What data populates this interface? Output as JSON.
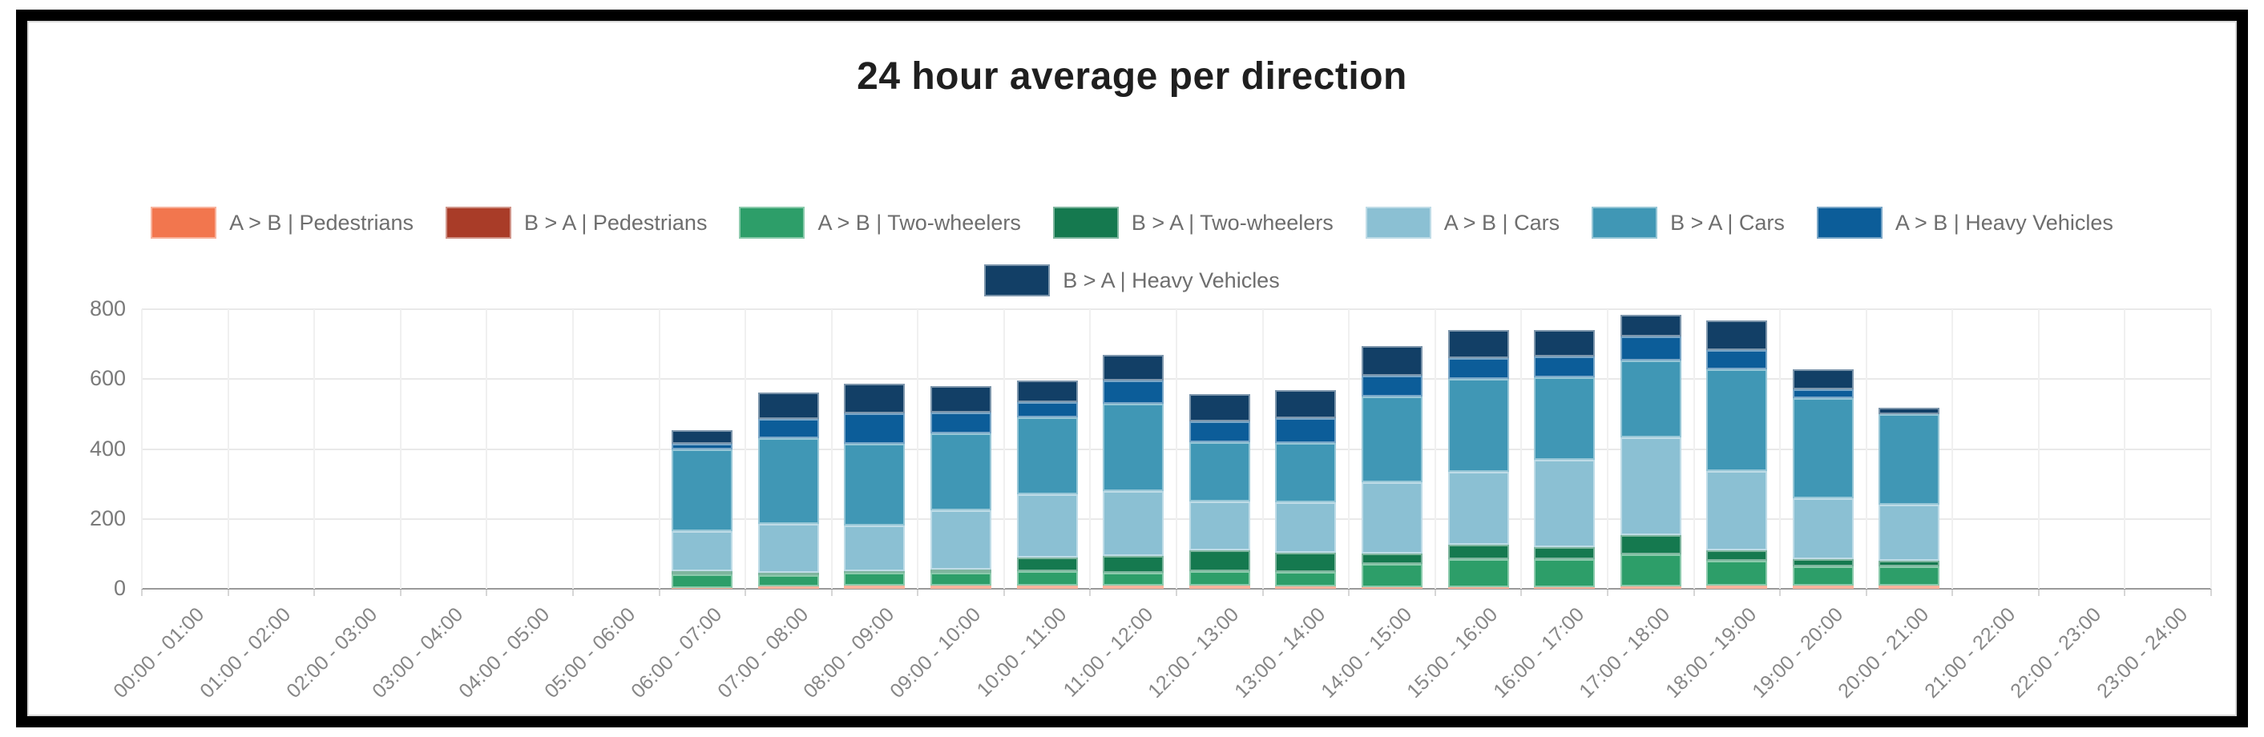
{
  "page": {
    "title": "24 hour average per direction"
  },
  "chart_data": {
    "type": "bar",
    "stacked": true,
    "title": "24 hour average per direction",
    "xlabel": "",
    "ylabel": "",
    "ylim": [
      0,
      800
    ],
    "yticks": [
      0,
      200,
      400,
      600,
      800
    ],
    "grid": true,
    "legend_position": "top",
    "legend_row_break_after": 7,
    "x_tick_rotation": -45,
    "categories": [
      "00:00 - 01:00",
      "01:00 - 02:00",
      "02:00 - 03:00",
      "03:00 - 04:00",
      "04:00 - 05:00",
      "05:00 - 06:00",
      "06:00 - 07:00",
      "07:00 - 08:00",
      "08:00 - 09:00",
      "09:00 - 10:00",
      "10:00 - 11:00",
      "11:00 - 12:00",
      "12:00 - 13:00",
      "13:00 - 14:00",
      "14:00 - 15:00",
      "15:00 - 16:00",
      "16:00 - 17:00",
      "17:00 - 18:00",
      "18:00 - 19:00",
      "19:00 - 20:00",
      "20:00 - 21:00",
      "21:00 - 22:00",
      "22:00 - 23:00",
      "23:00 - 24:00"
    ],
    "series": [
      {
        "name": "A > B | Pedestrians",
        "color": "#F2764E",
        "values": [
          0,
          0,
          0,
          0,
          0,
          0,
          2,
          8,
          10,
          10,
          10,
          10,
          10,
          8,
          5,
          5,
          5,
          8,
          10,
          10,
          10,
          0,
          0,
          0
        ]
      },
      {
        "name": "B > A | Pedestrians",
        "color": "#A93C28",
        "values": [
          0,
          0,
          0,
          0,
          0,
          0,
          0,
          0,
          0,
          0,
          0,
          0,
          0,
          0,
          0,
          0,
          0,
          0,
          0,
          0,
          0,
          0,
          0,
          0
        ]
      },
      {
        "name": "A > B | Two-wheelers",
        "color": "#2D9E69",
        "values": [
          0,
          0,
          0,
          0,
          0,
          0,
          40,
          30,
          35,
          35,
          40,
          35,
          40,
          40,
          65,
          80,
          80,
          90,
          70,
          55,
          55,
          0,
          0,
          0
        ]
      },
      {
        "name": "B > A | Two-wheelers",
        "color": "#15794F",
        "values": [
          0,
          0,
          0,
          0,
          0,
          0,
          8,
          8,
          6,
          10,
          40,
          50,
          60,
          55,
          30,
          40,
          35,
          55,
          30,
          20,
          15,
          0,
          0,
          0
        ]
      },
      {
        "name": "A > B | Cars",
        "color": "#8BC0D3",
        "values": [
          0,
          0,
          0,
          0,
          0,
          0,
          115,
          140,
          130,
          170,
          180,
          185,
          140,
          145,
          205,
          210,
          250,
          280,
          228,
          175,
          160,
          0,
          0,
          0
        ]
      },
      {
        "name": "B > A | Cars",
        "color": "#4097B5",
        "values": [
          0,
          0,
          0,
          0,
          0,
          0,
          235,
          245,
          235,
          220,
          220,
          250,
          170,
          170,
          245,
          265,
          235,
          220,
          290,
          285,
          260,
          0,
          0,
          0
        ]
      },
      {
        "name": "A > B | Heavy Vehicles",
        "color": "#0C5D99",
        "values": [
          0,
          0,
          0,
          0,
          0,
          0,
          15,
          55,
          85,
          60,
          45,
          65,
          60,
          70,
          60,
          60,
          60,
          70,
          55,
          25,
          0,
          0,
          0,
          0
        ]
      },
      {
        "name": "B > A | Heavy Vehicles",
        "color": "#123F66",
        "values": [
          0,
          0,
          0,
          0,
          0,
          0,
          38,
          75,
          85,
          75,
          62,
          75,
          78,
          80,
          85,
          80,
          75,
          60,
          85,
          58,
          18,
          0,
          0,
          0
        ]
      }
    ]
  }
}
